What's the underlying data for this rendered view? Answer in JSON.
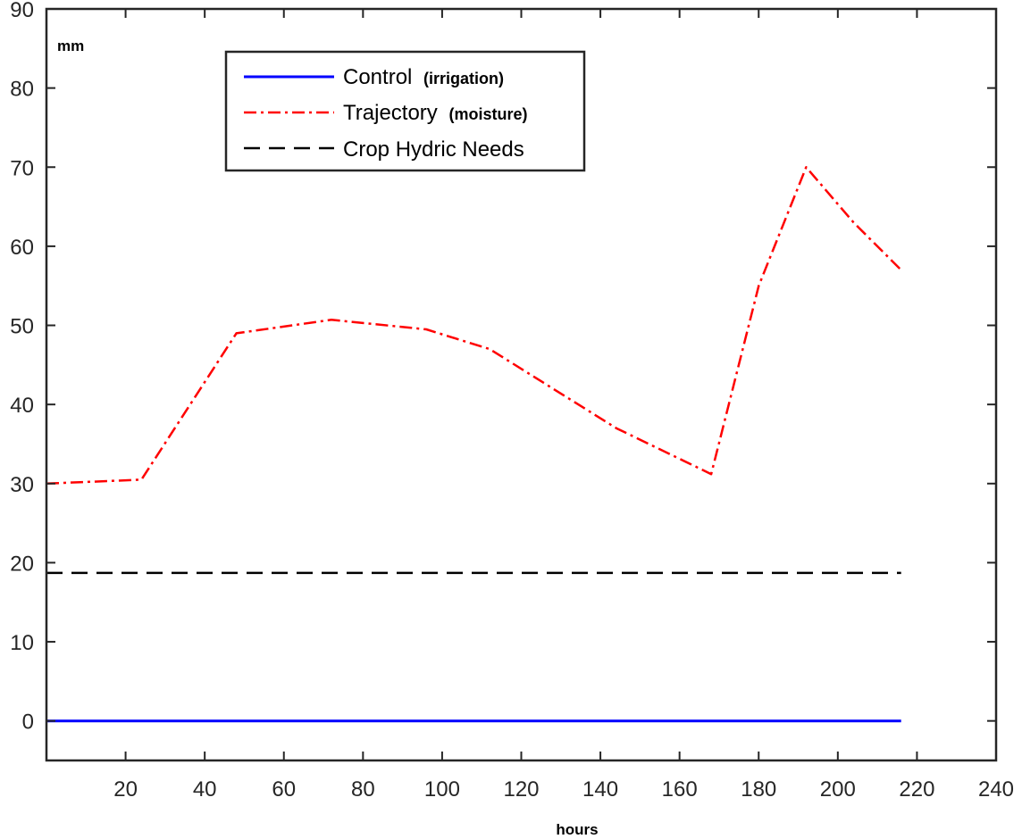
{
  "chart_data": {
    "type": "line",
    "xlabel": "hours",
    "ylabel": "mm",
    "xlim": [
      0,
      240
    ],
    "ylim": [
      -5,
      90
    ],
    "xticks": [
      20,
      40,
      60,
      80,
      100,
      120,
      140,
      160,
      180,
      200,
      220,
      240
    ],
    "yticks": [
      0,
      10,
      20,
      30,
      40,
      50,
      60,
      70,
      80,
      90
    ],
    "grid": false,
    "legend_position": "top-center",
    "series": [
      {
        "name": "Control",
        "name_suffix": "(irrigation)",
        "color": "#0000ff",
        "style": "solid",
        "x": [
          0,
          216
        ],
        "y": [
          0,
          0
        ]
      },
      {
        "name": "Trajectory",
        "name_suffix": "(moisture)",
        "color": "#ff0000",
        "style": "dashdot",
        "x": [
          0,
          24,
          48,
          72,
          96,
          112,
          144,
          168,
          180,
          192,
          204,
          216
        ],
        "y": [
          30,
          30.5,
          49,
          50.7,
          49.5,
          47,
          37,
          31.2,
          55,
          70,
          63,
          57
        ]
      },
      {
        "name": "Crop Hydric Needs",
        "name_suffix": "",
        "color": "#000000",
        "style": "dashed",
        "x": [
          0,
          216
        ],
        "y": [
          18.7,
          18.7
        ]
      }
    ]
  }
}
